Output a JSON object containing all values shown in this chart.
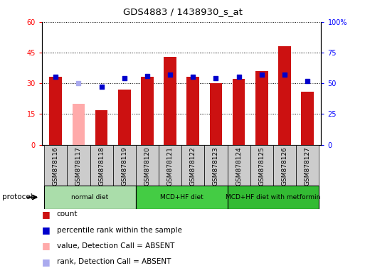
{
  "title": "GDS4883 / 1438930_s_at",
  "samples": [
    "GSM878116",
    "GSM878117",
    "GSM878118",
    "GSM878119",
    "GSM878120",
    "GSM878121",
    "GSM878122",
    "GSM878123",
    "GSM878124",
    "GSM878125",
    "GSM878126",
    "GSM878127"
  ],
  "count_values": [
    33,
    20,
    17,
    27,
    33,
    43,
    33,
    30,
    32,
    36,
    48,
    26
  ],
  "count_absent": [
    false,
    true,
    false,
    false,
    false,
    false,
    false,
    false,
    false,
    false,
    false,
    false
  ],
  "percentile_values": [
    55,
    50,
    47,
    54,
    56,
    57,
    55,
    54,
    55,
    57,
    57,
    52
  ],
  "percentile_absent": [
    false,
    true,
    false,
    false,
    false,
    false,
    false,
    false,
    false,
    false,
    false,
    false
  ],
  "bar_color_normal": "#cc1111",
  "bar_color_absent": "#ffaaaa",
  "dot_color_normal": "#0000cc",
  "dot_color_absent": "#aaaaee",
  "ylim_left": [
    0,
    60
  ],
  "ylim_right": [
    0,
    100
  ],
  "yticks_left": [
    0,
    15,
    30,
    45,
    60
  ],
  "ytick_labels_left": [
    "0",
    "15",
    "30",
    "45",
    "60"
  ],
  "yticks_right": [
    0,
    25,
    50,
    75,
    100
  ],
  "ytick_labels_right": [
    "0",
    "25",
    "50",
    "75",
    "100%"
  ],
  "protocol_groups": [
    {
      "label": "normal diet",
      "start": 0,
      "end": 3,
      "color": "#aaddaa"
    },
    {
      "label": "MCD+HF diet",
      "start": 4,
      "end": 7,
      "color": "#44cc44"
    },
    {
      "label": "MCD+HF diet with metformin",
      "start": 8,
      "end": 11,
      "color": "#33bb33"
    }
  ],
  "protocol_label": "protocol",
  "legend_items": [
    {
      "label": "count",
      "color": "#cc1111"
    },
    {
      "label": "percentile rank within the sample",
      "color": "#0000cc"
    },
    {
      "label": "value, Detection Call = ABSENT",
      "color": "#ffaaaa"
    },
    {
      "label": "rank, Detection Call = ABSENT",
      "color": "#aaaaee"
    }
  ],
  "bar_width": 0.55,
  "dot_size": 25,
  "sample_bg": "#cccccc",
  "plot_bg": "#ffffff",
  "fig_bg": "#ffffff"
}
